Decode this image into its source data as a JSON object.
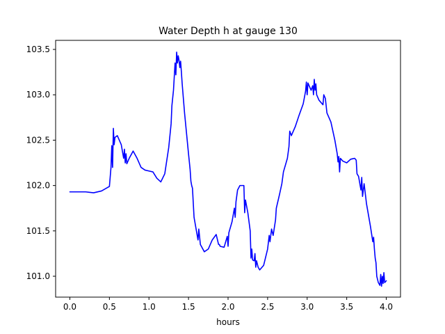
{
  "chart_data": {
    "type": "line",
    "title": "Water Depth h at gauge 130",
    "xlabel": "hours",
    "ylabel": "",
    "xlim": [
      -0.18,
      4.18
    ],
    "ylim": [
      100.77,
      103.6
    ],
    "xticks": [
      0.0,
      0.5,
      1.0,
      1.5,
      2.0,
      2.5,
      3.0,
      3.5,
      4.0
    ],
    "xtick_labels": [
      "0.0",
      "0.5",
      "1.0",
      "1.5",
      "2.0",
      "2.5",
      "3.0",
      "3.5",
      "4.0"
    ],
    "yticks": [
      101.0,
      101.5,
      102.0,
      102.5,
      103.0,
      103.5
    ],
    "ytick_labels": [
      "101.0",
      "101.5",
      "102.0",
      "102.5",
      "103.0",
      "103.5"
    ],
    "grid": false,
    "series": [
      {
        "color": "#0000ff",
        "x": [
          0.0,
          0.1,
          0.2,
          0.3,
          0.4,
          0.5,
          0.52,
          0.53,
          0.54,
          0.55,
          0.56,
          0.57,
          0.6,
          0.65,
          0.68,
          0.69,
          0.7,
          0.71,
          0.72,
          0.75,
          0.8,
          0.85,
          0.9,
          0.95,
          1.0,
          1.05,
          1.1,
          1.15,
          1.2,
          1.25,
          1.28,
          1.29,
          1.31,
          1.32,
          1.33,
          1.34,
          1.35,
          1.36,
          1.37,
          1.38,
          1.39,
          1.4,
          1.41,
          1.42,
          1.45,
          1.5,
          1.52,
          1.53,
          1.54,
          1.55,
          1.57,
          1.6,
          1.62,
          1.63,
          1.65,
          1.7,
          1.75,
          1.8,
          1.85,
          1.88,
          1.89,
          1.9,
          1.95,
          1.99,
          2.0,
          2.01,
          2.05,
          2.08,
          2.09,
          2.1,
          2.12,
          2.15,
          2.2,
          2.21,
          2.22,
          2.25,
          2.28,
          2.29,
          2.3,
          2.31,
          2.33,
          2.34,
          2.35,
          2.36,
          2.38,
          2.4,
          2.45,
          2.5,
          2.52,
          2.53,
          2.55,
          2.57,
          2.6,
          2.61,
          2.65,
          2.68,
          2.7,
          2.75,
          2.77,
          2.78,
          2.8,
          2.85,
          2.9,
          2.95,
          2.98,
          2.99,
          3.0,
          3.01,
          3.05,
          3.07,
          3.08,
          3.09,
          3.1,
          3.11,
          3.12,
          3.15,
          3.2,
          3.21,
          3.23,
          3.25,
          3.3,
          3.35,
          3.38,
          3.39,
          3.4,
          3.41,
          3.42,
          3.45,
          3.5,
          3.55,
          3.6,
          3.62,
          3.63,
          3.65,
          3.67,
          3.68,
          3.69,
          3.7,
          3.72,
          3.75,
          3.8,
          3.83,
          3.84,
          3.85,
          3.86,
          3.87,
          3.88,
          3.9,
          3.92,
          3.93,
          3.94,
          3.95,
          3.96,
          3.97,
          3.98,
          4.0
        ],
        "y": [
          101.93,
          101.93,
          101.93,
          101.92,
          101.94,
          101.99,
          102.2,
          102.44,
          102.2,
          102.63,
          102.45,
          102.53,
          102.55,
          102.45,
          102.3,
          102.4,
          102.25,
          102.35,
          102.24,
          102.3,
          102.38,
          102.3,
          102.2,
          102.17,
          102.16,
          102.15,
          102.08,
          102.04,
          102.13,
          102.42,
          102.68,
          102.88,
          103.05,
          103.2,
          103.35,
          103.22,
          103.47,
          103.35,
          103.43,
          103.38,
          103.3,
          103.37,
          103.25,
          103.12,
          102.8,
          102.35,
          102.18,
          102.05,
          102.0,
          101.97,
          101.65,
          101.5,
          101.4,
          101.52,
          101.35,
          101.27,
          101.3,
          101.4,
          101.46,
          101.35,
          101.35,
          101.33,
          101.32,
          101.44,
          101.33,
          101.48,
          101.6,
          101.75,
          101.65,
          101.82,
          101.95,
          102.0,
          102.0,
          101.7,
          101.84,
          101.7,
          101.5,
          101.2,
          101.3,
          101.18,
          101.17,
          101.25,
          101.1,
          101.17,
          101.1,
          101.07,
          101.12,
          101.3,
          101.45,
          101.38,
          101.52,
          101.45,
          101.62,
          101.75,
          101.9,
          102.02,
          102.15,
          102.3,
          102.43,
          102.6,
          102.55,
          102.65,
          102.78,
          102.9,
          103.04,
          103.14,
          103.0,
          103.13,
          103.05,
          103.1,
          103.0,
          103.17,
          103.05,
          103.12,
          103.0,
          102.94,
          102.89,
          103.0,
          102.96,
          102.8,
          102.7,
          102.5,
          102.35,
          102.26,
          102.32,
          102.15,
          102.3,
          102.27,
          102.25,
          102.29,
          102.3,
          102.28,
          102.13,
          102.1,
          102.0,
          101.95,
          102.09,
          101.88,
          102.02,
          101.8,
          101.55,
          101.38,
          101.43,
          101.3,
          101.2,
          101.15,
          101.0,
          100.93,
          100.9,
          101.02,
          100.89,
          101.0,
          100.92,
          101.04,
          100.93,
          100.95
        ]
      }
    ]
  }
}
